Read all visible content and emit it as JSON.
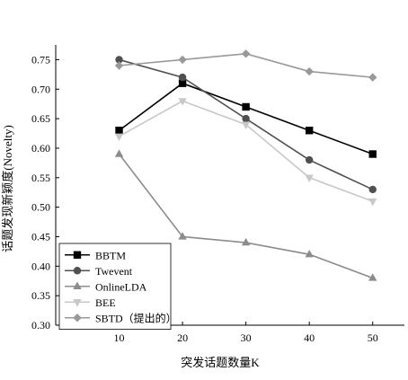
{
  "chart_data": {
    "type": "line",
    "xlabel": "突发话题数量K",
    "ylabel": "话题发现新颖度(Novelty)",
    "x": [
      10,
      20,
      30,
      40,
      50
    ],
    "xlim": [
      0,
      55
    ],
    "ylim": [
      0.3,
      0.775
    ],
    "xticks": [
      10,
      20,
      30,
      40,
      50
    ],
    "yticks": [
      0.3,
      0.35,
      0.4,
      0.45,
      0.5,
      0.55,
      0.6,
      0.65,
      0.7,
      0.75
    ],
    "ytick_labels": [
      "0.30",
      "0.35",
      "0.40",
      "0.45",
      "0.50",
      "0.55",
      "0.60",
      "0.65",
      "0.70",
      "0.75"
    ],
    "grid": false,
    "legend_position": "bottom-left",
    "series": [
      {
        "name": "BBTM",
        "values": [
          0.63,
          0.71,
          0.67,
          0.63,
          0.59
        ],
        "color": "#000000",
        "marker": "square"
      },
      {
        "name": "Twevent",
        "values": [
          0.75,
          0.72,
          0.65,
          0.58,
          0.53
        ],
        "color": "#505050",
        "marker": "circle"
      },
      {
        "name": "OnlineLDA",
        "values": [
          0.59,
          0.45,
          0.44,
          0.42,
          0.38
        ],
        "color": "#8c8c8c",
        "marker": "triangle-up"
      },
      {
        "name": "BEE",
        "values": [
          0.62,
          0.68,
          0.64,
          0.55,
          0.51
        ],
        "color": "#c8c8c8",
        "marker": "triangle-down"
      },
      {
        "name": "SBTD（提出的）",
        "values": [
          0.74,
          0.75,
          0.76,
          0.73,
          0.72
        ],
        "color": "#999999",
        "marker": "diamond"
      }
    ]
  }
}
